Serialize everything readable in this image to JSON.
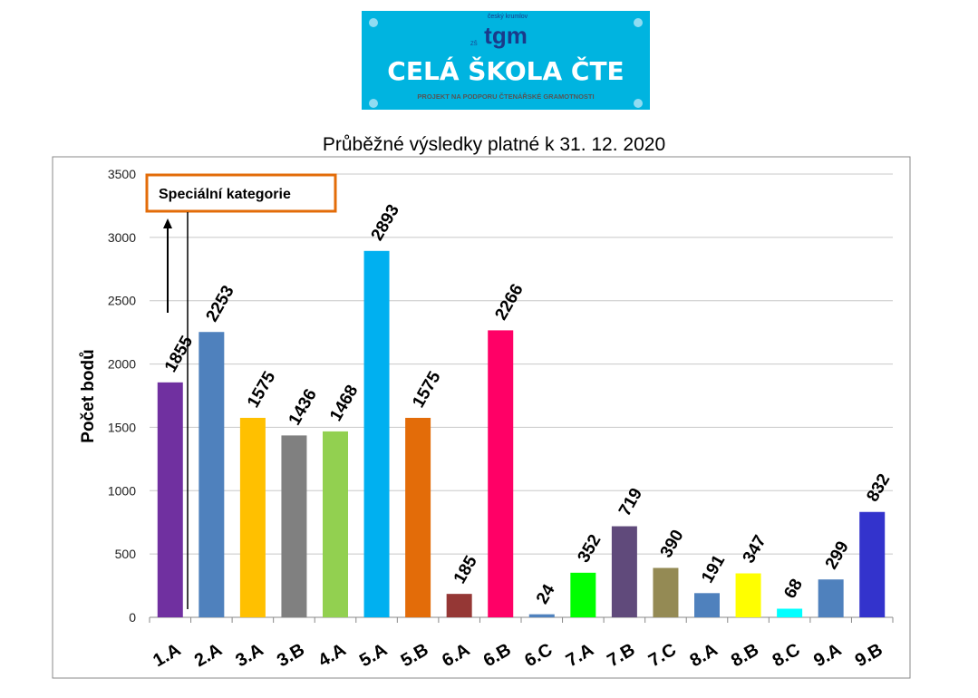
{
  "logo": {
    "town": "český krumlov",
    "brand": "tgm",
    "school_type": "ZŠ",
    "title": "CELÁ ŠKOLA ČTE",
    "subtitle": "PROJEKT NA PODPORU ČTENÁŘSKÉ GRAMOTNOSTI",
    "bg_color": "#00b4e0"
  },
  "chart_data": {
    "type": "bar",
    "title": "Průběžné výsledky platné k 31. 12. 2020",
    "ylabel": "Počet bodů",
    "xlabel": "",
    "ylim": [
      0,
      3500
    ],
    "yticks": [
      0,
      500,
      1000,
      1500,
      2000,
      2500,
      3000,
      3500
    ],
    "grid": true,
    "categories": [
      "1.A",
      "2.A",
      "3.A",
      "3.B",
      "4.A",
      "5.A",
      "5.B",
      "6.A",
      "6.B",
      "6.C",
      "7.A",
      "7.B",
      "7.C",
      "8.A",
      "8.B",
      "8.C",
      "9.A",
      "9.B"
    ],
    "values": [
      1855,
      2253,
      1575,
      1436,
      1468,
      2893,
      1575,
      185,
      2266,
      24,
      352,
      719,
      390,
      191,
      347,
      68,
      299,
      832
    ],
    "colors": [
      "#7030a0",
      "#4f81bd",
      "#ffc000",
      "#808080",
      "#92d050",
      "#00b0f0",
      "#e36c09",
      "#953735",
      "#ff0066",
      "#4f81bd",
      "#00ff00",
      "#604a7b",
      "#948a54",
      "#4f81bd",
      "#ffff00",
      "#00ffff",
      "#4f81bd",
      "#3333cc"
    ],
    "annotation": "Speciální kategorie",
    "annotation_color": "#e36c09"
  }
}
